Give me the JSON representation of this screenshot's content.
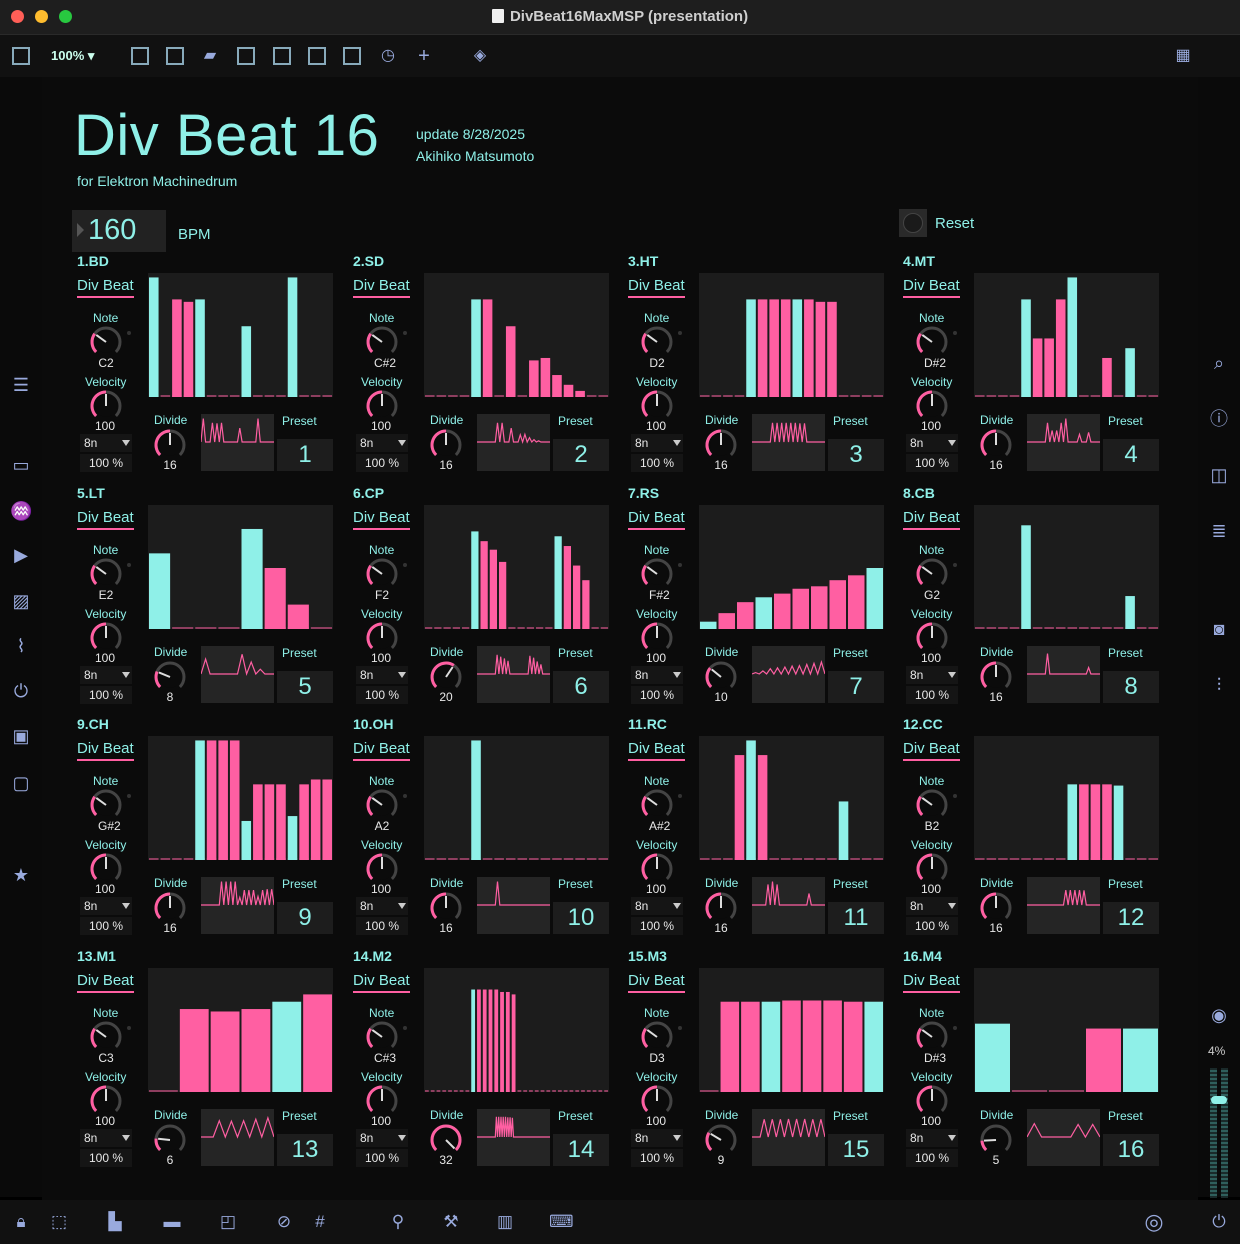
{
  "window": {
    "title": "DivBeat16MaxMSP (presentation)"
  },
  "toolbar": {
    "zoom": "100%"
  },
  "header": {
    "title": "Div Beat 16",
    "subtitle": "for Elektron Machinedrum",
    "update": "update 8/28/2025",
    "author": "Akihiko Matsumoto"
  },
  "transport": {
    "bpm": "160",
    "bpm_label": "BPM",
    "reset_label": "Reset"
  },
  "labels": {
    "div_beat": "Div Beat",
    "note": "Note",
    "velocity": "Velocity",
    "divide": "Divide",
    "preset": "Preset"
  },
  "colors": {
    "accent": "#8ff0e8",
    "pink": "#ff5fa2",
    "bg": "#0b0b0b",
    "panel": "#1c1c1c"
  },
  "right_meter": {
    "level": "4%"
  },
  "channels": [
    {
      "name": "1.BD",
      "note": "C2",
      "velocity": "100",
      "rate": "8n",
      "percent": "100 %",
      "divide": "16",
      "preset": "1",
      "steps": [
        {
          "v": 0.98,
          "c": "c"
        },
        {
          "v": 0,
          "c": "p"
        },
        {
          "v": 0.8,
          "c": "p"
        },
        {
          "v": 0.78,
          "c": "p"
        },
        {
          "v": 0.8,
          "c": "c"
        },
        {
          "v": 0,
          "c": "p"
        },
        {
          "v": 0,
          "c": "p"
        },
        {
          "v": 0,
          "c": "p"
        },
        {
          "v": 0.58,
          "c": "c"
        },
        {
          "v": 0,
          "c": "p"
        },
        {
          "v": 0,
          "c": "p"
        },
        {
          "v": 0,
          "c": "p"
        },
        {
          "v": 0.98,
          "c": "c"
        },
        {
          "v": 0,
          "c": "p"
        },
        {
          "v": 0,
          "c": "p"
        },
        {
          "v": 0,
          "c": "p"
        }
      ]
    },
    {
      "name": "2.SD",
      "note": "C#2",
      "velocity": "100",
      "rate": "8n",
      "percent": "100 %",
      "divide": "16",
      "preset": "2",
      "steps": [
        {
          "v": 0,
          "c": "p"
        },
        {
          "v": 0,
          "c": "p"
        },
        {
          "v": 0,
          "c": "p"
        },
        {
          "v": 0,
          "c": "p"
        },
        {
          "v": 0.8,
          "c": "c"
        },
        {
          "v": 0.8,
          "c": "p"
        },
        {
          "v": 0,
          "c": "p"
        },
        {
          "v": 0.58,
          "c": "p"
        },
        {
          "v": 0,
          "c": "p"
        },
        {
          "v": 0.3,
          "c": "p"
        },
        {
          "v": 0.32,
          "c": "p"
        },
        {
          "v": 0.18,
          "c": "p"
        },
        {
          "v": 0.1,
          "c": "p"
        },
        {
          "v": 0.05,
          "c": "p"
        },
        {
          "v": 0,
          "c": "p"
        },
        {
          "v": 0,
          "c": "p"
        }
      ]
    },
    {
      "name": "3.HT",
      "note": "D2",
      "velocity": "100",
      "rate": "8n",
      "percent": "100 %",
      "divide": "16",
      "preset": "3",
      "steps": [
        {
          "v": 0,
          "c": "p"
        },
        {
          "v": 0,
          "c": "p"
        },
        {
          "v": 0,
          "c": "p"
        },
        {
          "v": 0,
          "c": "p"
        },
        {
          "v": 0.8,
          "c": "c"
        },
        {
          "v": 0.8,
          "c": "p"
        },
        {
          "v": 0.8,
          "c": "p"
        },
        {
          "v": 0.8,
          "c": "p"
        },
        {
          "v": 0.8,
          "c": "c"
        },
        {
          "v": 0.8,
          "c": "p"
        },
        {
          "v": 0.78,
          "c": "p"
        },
        {
          "v": 0.78,
          "c": "p"
        },
        {
          "v": 0,
          "c": "p"
        },
        {
          "v": 0,
          "c": "p"
        },
        {
          "v": 0,
          "c": "p"
        },
        {
          "v": 0,
          "c": "p"
        }
      ]
    },
    {
      "name": "4.MT",
      "note": "D#2",
      "velocity": "100",
      "rate": "8n",
      "percent": "100 %",
      "divide": "16",
      "preset": "4",
      "steps": [
        {
          "v": 0,
          "c": "p"
        },
        {
          "v": 0,
          "c": "p"
        },
        {
          "v": 0,
          "c": "p"
        },
        {
          "v": 0,
          "c": "p"
        },
        {
          "v": 0.8,
          "c": "c"
        },
        {
          "v": 0.48,
          "c": "p"
        },
        {
          "v": 0.48,
          "c": "p"
        },
        {
          "v": 0.8,
          "c": "p"
        },
        {
          "v": 0.98,
          "c": "c"
        },
        {
          "v": 0,
          "c": "p"
        },
        {
          "v": 0,
          "c": "p"
        },
        {
          "v": 0.32,
          "c": "p"
        },
        {
          "v": 0,
          "c": "p"
        },
        {
          "v": 0.4,
          "c": "c"
        },
        {
          "v": 0,
          "c": "p"
        },
        {
          "v": 0,
          "c": "p"
        }
      ]
    },
    {
      "name": "5.LT",
      "note": "E2",
      "velocity": "100",
      "rate": "8n",
      "percent": "100 %",
      "divide": "8",
      "preset": "5",
      "steps": [
        {
          "v": 0.62,
          "c": "c"
        },
        {
          "v": 0,
          "c": "p"
        },
        {
          "v": 0,
          "c": "p"
        },
        {
          "v": 0,
          "c": "p"
        },
        {
          "v": 0.82,
          "c": "c"
        },
        {
          "v": 0.5,
          "c": "p"
        },
        {
          "v": 0.2,
          "c": "p"
        },
        {
          "v": 0,
          "c": "p"
        }
      ]
    },
    {
      "name": "6.CP",
      "note": "F2",
      "velocity": "100",
      "rate": "8n",
      "percent": "100 %",
      "divide": "20",
      "preset": "6",
      "steps": [
        {
          "v": 0,
          "c": "p"
        },
        {
          "v": 0,
          "c": "p"
        },
        {
          "v": 0,
          "c": "p"
        },
        {
          "v": 0,
          "c": "p"
        },
        {
          "v": 0,
          "c": "p"
        },
        {
          "v": 0.8,
          "c": "c"
        },
        {
          "v": 0.72,
          "c": "p"
        },
        {
          "v": 0.65,
          "c": "p"
        },
        {
          "v": 0.55,
          "c": "p"
        },
        {
          "v": 0,
          "c": "p"
        },
        {
          "v": 0,
          "c": "p"
        },
        {
          "v": 0,
          "c": "p"
        },
        {
          "v": 0,
          "c": "p"
        },
        {
          "v": 0,
          "c": "p"
        },
        {
          "v": 0.76,
          "c": "c"
        },
        {
          "v": 0.68,
          "c": "p"
        },
        {
          "v": 0.52,
          "c": "p"
        },
        {
          "v": 0.4,
          "c": "p"
        },
        {
          "v": 0,
          "c": "p"
        },
        {
          "v": 0,
          "c": "p"
        }
      ]
    },
    {
      "name": "7.RS",
      "note": "F#2",
      "velocity": "100",
      "rate": "8n",
      "percent": "100 %",
      "divide": "10",
      "preset": "7",
      "steps": [
        {
          "v": 0.06,
          "c": "c"
        },
        {
          "v": 0.13,
          "c": "p"
        },
        {
          "v": 0.22,
          "c": "p"
        },
        {
          "v": 0.26,
          "c": "c"
        },
        {
          "v": 0.29,
          "c": "p"
        },
        {
          "v": 0.33,
          "c": "p"
        },
        {
          "v": 0.35,
          "c": "p"
        },
        {
          "v": 0.4,
          "c": "p"
        },
        {
          "v": 0.44,
          "c": "p"
        },
        {
          "v": 0.5,
          "c": "c"
        }
      ]
    },
    {
      "name": "8.CB",
      "note": "G2",
      "velocity": "100",
      "rate": "8n",
      "percent": "100 %",
      "divide": "16",
      "preset": "8",
      "steps": [
        {
          "v": 0,
          "c": "p"
        },
        {
          "v": 0,
          "c": "p"
        },
        {
          "v": 0,
          "c": "p"
        },
        {
          "v": 0,
          "c": "p"
        },
        {
          "v": 0.85,
          "c": "c"
        },
        {
          "v": 0,
          "c": "p"
        },
        {
          "v": 0,
          "c": "p"
        },
        {
          "v": 0,
          "c": "p"
        },
        {
          "v": 0,
          "c": "p"
        },
        {
          "v": 0,
          "c": "p"
        },
        {
          "v": 0,
          "c": "p"
        },
        {
          "v": 0,
          "c": "p"
        },
        {
          "v": 0,
          "c": "p"
        },
        {
          "v": 0.27,
          "c": "c"
        },
        {
          "v": 0,
          "c": "p"
        },
        {
          "v": 0,
          "c": "p"
        }
      ]
    },
    {
      "name": "9.CH",
      "note": "G#2",
      "velocity": "100",
      "rate": "8n",
      "percent": "100 %",
      "divide": "16",
      "preset": "9",
      "steps": [
        {
          "v": 0,
          "c": "p"
        },
        {
          "v": 0,
          "c": "p"
        },
        {
          "v": 0,
          "c": "p"
        },
        {
          "v": 0,
          "c": "p"
        },
        {
          "v": 0.98,
          "c": "c"
        },
        {
          "v": 0.98,
          "c": "p"
        },
        {
          "v": 0.98,
          "c": "p"
        },
        {
          "v": 0.98,
          "c": "p"
        },
        {
          "v": 0.32,
          "c": "c"
        },
        {
          "v": 0.62,
          "c": "p"
        },
        {
          "v": 0.62,
          "c": "p"
        },
        {
          "v": 0.62,
          "c": "p"
        },
        {
          "v": 0.36,
          "c": "c"
        },
        {
          "v": 0.62,
          "c": "p"
        },
        {
          "v": 0.66,
          "c": "p"
        },
        {
          "v": 0.66,
          "c": "p"
        }
      ]
    },
    {
      "name": "10.OH",
      "note": "A2",
      "velocity": "100",
      "rate": "8n",
      "percent": "100 %",
      "divide": "16",
      "preset": "10",
      "steps": [
        {
          "v": 0,
          "c": "p"
        },
        {
          "v": 0,
          "c": "p"
        },
        {
          "v": 0,
          "c": "p"
        },
        {
          "v": 0,
          "c": "p"
        },
        {
          "v": 0.98,
          "c": "c"
        },
        {
          "v": 0,
          "c": "p"
        },
        {
          "v": 0,
          "c": "p"
        },
        {
          "v": 0,
          "c": "p"
        },
        {
          "v": 0,
          "c": "p"
        },
        {
          "v": 0,
          "c": "p"
        },
        {
          "v": 0,
          "c": "p"
        },
        {
          "v": 0,
          "c": "p"
        },
        {
          "v": 0,
          "c": "p"
        },
        {
          "v": 0,
          "c": "p"
        },
        {
          "v": 0,
          "c": "p"
        },
        {
          "v": 0,
          "c": "p"
        }
      ]
    },
    {
      "name": "11.RC",
      "note": "A#2",
      "velocity": "100",
      "rate": "8n",
      "percent": "100 %",
      "divide": "16",
      "preset": "11",
      "steps": [
        {
          "v": 0,
          "c": "p"
        },
        {
          "v": 0,
          "c": "p"
        },
        {
          "v": 0,
          "c": "p"
        },
        {
          "v": 0.86,
          "c": "p"
        },
        {
          "v": 0.98,
          "c": "c"
        },
        {
          "v": 0.86,
          "c": "p"
        },
        {
          "v": 0,
          "c": "p"
        },
        {
          "v": 0,
          "c": "p"
        },
        {
          "v": 0,
          "c": "p"
        },
        {
          "v": 0,
          "c": "p"
        },
        {
          "v": 0,
          "c": "p"
        },
        {
          "v": 0,
          "c": "p"
        },
        {
          "v": 0.48,
          "c": "c"
        },
        {
          "v": 0,
          "c": "p"
        },
        {
          "v": 0,
          "c": "p"
        },
        {
          "v": 0,
          "c": "p"
        }
      ]
    },
    {
      "name": "12.CC",
      "note": "B2",
      "velocity": "100",
      "rate": "8n",
      "percent": "100 %",
      "divide": "16",
      "preset": "12",
      "steps": [
        {
          "v": 0,
          "c": "p"
        },
        {
          "v": 0,
          "c": "p"
        },
        {
          "v": 0,
          "c": "p"
        },
        {
          "v": 0,
          "c": "p"
        },
        {
          "v": 0,
          "c": "p"
        },
        {
          "v": 0,
          "c": "p"
        },
        {
          "v": 0,
          "c": "p"
        },
        {
          "v": 0,
          "c": "p"
        },
        {
          "v": 0.62,
          "c": "c"
        },
        {
          "v": 0.62,
          "c": "p"
        },
        {
          "v": 0.62,
          "c": "p"
        },
        {
          "v": 0.62,
          "c": "p"
        },
        {
          "v": 0.61,
          "c": "c"
        },
        {
          "v": 0,
          "c": "p"
        },
        {
          "v": 0,
          "c": "p"
        },
        {
          "v": 0,
          "c": "p"
        }
      ]
    },
    {
      "name": "13.M1",
      "note": "C3",
      "velocity": "100",
      "rate": "8n",
      "percent": "100 %",
      "divide": "6",
      "preset": "13",
      "steps": [
        {
          "v": 0,
          "c": "c"
        },
        {
          "v": 0.68,
          "c": "p"
        },
        {
          "v": 0.66,
          "c": "p"
        },
        {
          "v": 0.68,
          "c": "p"
        },
        {
          "v": 0.74,
          "c": "c"
        },
        {
          "v": 0.8,
          "c": "p"
        }
      ]
    },
    {
      "name": "14.M2",
      "note": "C#3",
      "velocity": "100",
      "rate": "8n",
      "percent": "100 %",
      "divide": "32",
      "preset": "14",
      "steps": [
        {
          "v": 0,
          "c": "p"
        },
        {
          "v": 0,
          "c": "p"
        },
        {
          "v": 0,
          "c": "p"
        },
        {
          "v": 0,
          "c": "p"
        },
        {
          "v": 0,
          "c": "p"
        },
        {
          "v": 0,
          "c": "p"
        },
        {
          "v": 0,
          "c": "p"
        },
        {
          "v": 0,
          "c": "p"
        },
        {
          "v": 0.84,
          "c": "c"
        },
        {
          "v": 0.84,
          "c": "p"
        },
        {
          "v": 0.84,
          "c": "p"
        },
        {
          "v": 0.84,
          "c": "p"
        },
        {
          "v": 0.84,
          "c": "p"
        },
        {
          "v": 0.82,
          "c": "p"
        },
        {
          "v": 0.82,
          "c": "p"
        },
        {
          "v": 0.8,
          "c": "p"
        },
        {
          "v": 0,
          "c": "p"
        },
        {
          "v": 0,
          "c": "p"
        },
        {
          "v": 0,
          "c": "p"
        },
        {
          "v": 0,
          "c": "p"
        },
        {
          "v": 0,
          "c": "p"
        },
        {
          "v": 0,
          "c": "p"
        },
        {
          "v": 0,
          "c": "p"
        },
        {
          "v": 0,
          "c": "p"
        },
        {
          "v": 0,
          "c": "p"
        },
        {
          "v": 0,
          "c": "p"
        },
        {
          "v": 0,
          "c": "p"
        },
        {
          "v": 0,
          "c": "p"
        },
        {
          "v": 0,
          "c": "p"
        },
        {
          "v": 0,
          "c": "p"
        },
        {
          "v": 0,
          "c": "p"
        },
        {
          "v": 0,
          "c": "p"
        }
      ]
    },
    {
      "name": "15.M3",
      "note": "D3",
      "velocity": "100",
      "rate": "8n",
      "percent": "100 %",
      "divide": "9",
      "preset": "15",
      "steps": [
        {
          "v": 0,
          "c": "c"
        },
        {
          "v": 0.74,
          "c": "p"
        },
        {
          "v": 0.74,
          "c": "p"
        },
        {
          "v": 0.74,
          "c": "c"
        },
        {
          "v": 0.75,
          "c": "p"
        },
        {
          "v": 0.75,
          "c": "p"
        },
        {
          "v": 0.75,
          "c": "p"
        },
        {
          "v": 0.74,
          "c": "p"
        },
        {
          "v": 0.74,
          "c": "c"
        }
      ]
    },
    {
      "name": "16.M4",
      "note": "D#3",
      "velocity": "100",
      "rate": "8n",
      "percent": "100 %",
      "divide": "5",
      "preset": "16",
      "steps": [
        {
          "v": 0.56,
          "c": "c"
        },
        {
          "v": 0,
          "c": "p"
        },
        {
          "v": 0,
          "c": "p"
        },
        {
          "v": 0.52,
          "c": "p"
        },
        {
          "v": 0.52,
          "c": "c"
        }
      ]
    }
  ]
}
